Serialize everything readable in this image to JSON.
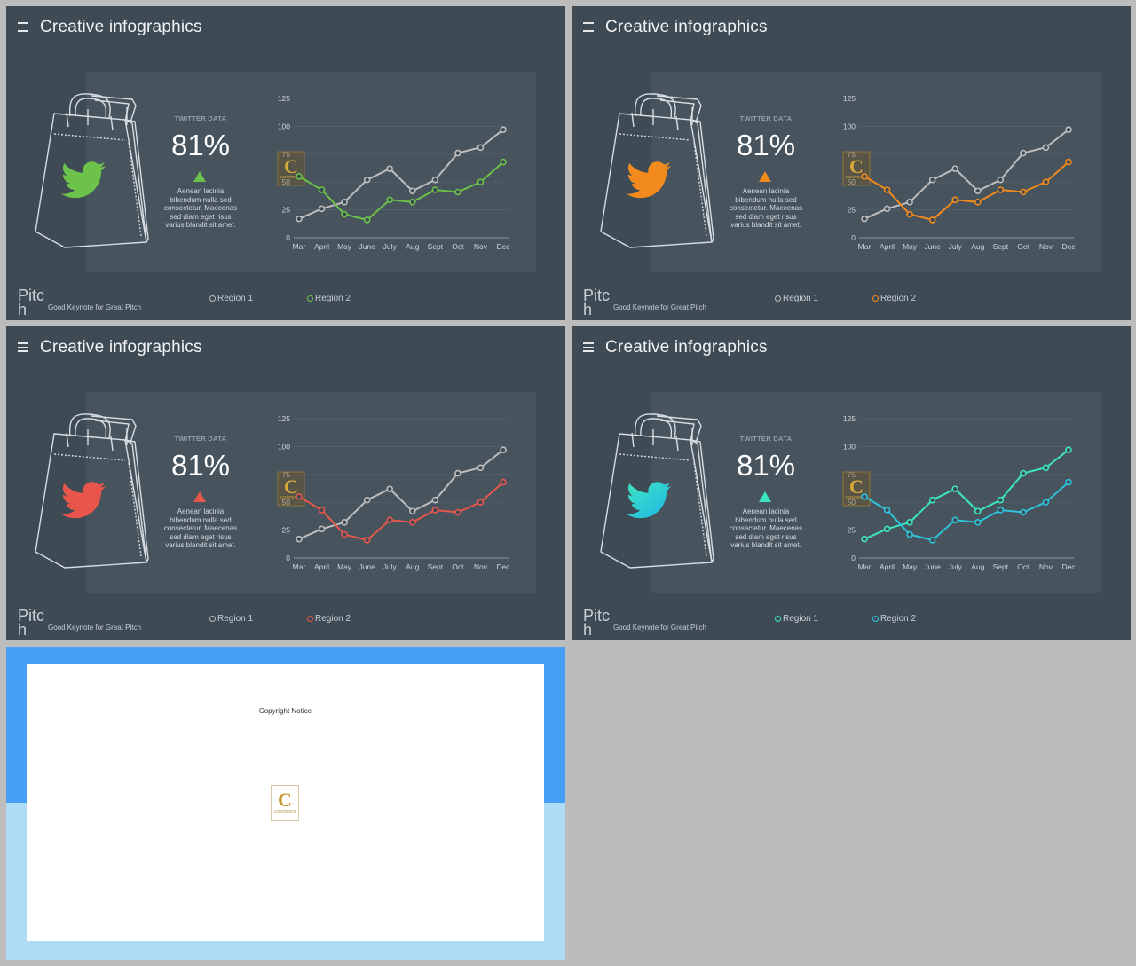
{
  "slides": [
    {
      "title": "Creative infographics",
      "twitter_label": "TWITTER DATA",
      "percent": "81%",
      "description": "Aenean lacinia bibendum nulla sed consectetur. Maecenas sed diam eget risus varius blandit sit amet.",
      "brand": "Pitch",
      "footer": "Good Keynote for Great Pitch",
      "legend": [
        "Region 1",
        "Region 2"
      ],
      "accent": "#6cc24a",
      "icon_gradient": [
        "#6cc24a",
        "#6cc24a"
      ],
      "region1_color": "#bdbdbd"
    },
    {
      "title": "Creative infographics",
      "twitter_label": "TWITTER DATA",
      "percent": "81%",
      "description": "Aenean lacinia bibendum nulla sed consectetur. Maecenas sed diam eget risus varius blandit sit amet.",
      "brand": "Pitch",
      "footer": "Good Keynote for Great Pitch",
      "legend": [
        "Region 1",
        "Region 2"
      ],
      "accent": "#f28a1e",
      "icon_gradient": [
        "#f28a1e",
        "#f28a1e"
      ],
      "region1_color": "#bdbdbd"
    },
    {
      "title": "Creative infographics",
      "twitter_label": "TWITTER DATA",
      "percent": "81%",
      "description": "Aenean lacinia bibendum nulla sed consectetur. Maecenas sed diam eget risus varius blandit sit amet.",
      "brand": "Pitch",
      "footer": "Good Keynote for Great Pitch",
      "legend": [
        "Region 1",
        "Region 2"
      ],
      "accent": "#e8564b",
      "icon_gradient": [
        "#e8564b",
        "#e8564b"
      ],
      "region1_color": "#bdbdbd"
    },
    {
      "title": "Creative infographics",
      "twitter_label": "TWITTER DATA",
      "percent": "81%",
      "description": "Aenean lacinia bibendum nulla sed consectetur. Maecenas sed diam eget risus varius blandit sit amet.",
      "brand": "Pitch",
      "footer": "Good Keynote for Great Pitch",
      "legend": [
        "Region 1",
        "Region 2"
      ],
      "accent": "#2ec4dc",
      "icon_gradient": [
        "#3de6c2",
        "#1fb4e6"
      ],
      "region1_color": "#3de6c2"
    }
  ],
  "chart_data": {
    "type": "line",
    "categories": [
      "Mar",
      "April",
      "May",
      "June",
      "July",
      "Aug",
      "Sept",
      "Oct",
      "Nov",
      "Dec"
    ],
    "ylim": [
      0,
      125
    ],
    "yticks": [
      0,
      25,
      50,
      75,
      100,
      125
    ],
    "series": [
      {
        "name": "Region 1",
        "values": [
          17,
          26,
          32,
          52,
          62,
          42,
          52,
          76,
          81,
          97
        ]
      },
      {
        "name": "Region 2",
        "values": [
          55,
          43,
          21,
          16,
          34,
          32,
          43,
          41,
          50,
          68
        ]
      }
    ],
    "watermark_text": "CONTENTS"
  },
  "final_slide": {
    "copyright": "Copyright Notice",
    "logo_text": "CONTENTS"
  }
}
